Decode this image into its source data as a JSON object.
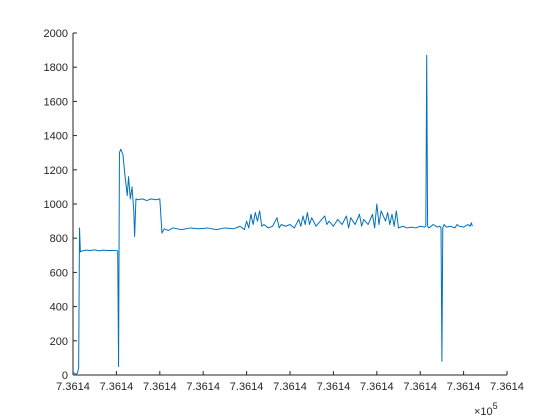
{
  "chart_data": {
    "type": "line",
    "title": "",
    "xlabel": "",
    "ylabel": "",
    "x_exponent_label": "×10",
    "x_exponent_power": "5",
    "ylim": [
      0,
      2000
    ],
    "xlim": [
      0,
      100
    ],
    "grid": false,
    "legend": "none",
    "y_ticks": [
      0,
      200,
      400,
      600,
      800,
      1000,
      1200,
      1400,
      1600,
      1800,
      2000
    ],
    "y_tick_labels": [
      "0",
      "200",
      "400",
      "600",
      "800",
      "1000",
      "1200",
      "1400",
      "1600",
      "1800",
      "2000"
    ],
    "x_ticks": [
      0,
      10,
      20,
      30,
      40,
      50,
      60,
      70,
      80,
      90,
      100
    ],
    "x_tick_labels": [
      "7.3614",
      "7.3614",
      "7.3614",
      "7.3614",
      "7.3614",
      "7.3614",
      "7.3614",
      "7.3614",
      "7.3614",
      "7.3614",
      "7.3614"
    ],
    "series": [
      {
        "color": "#0072bd",
        "points": [
          [
            0.0,
            15
          ],
          [
            0.6,
            5
          ],
          [
            1.0,
            10
          ],
          [
            1.3,
            40
          ],
          [
            1.5,
            860
          ],
          [
            1.7,
            720
          ],
          [
            2.0,
            725
          ],
          [
            3.0,
            730
          ],
          [
            4.0,
            728
          ],
          [
            5.0,
            732
          ],
          [
            6.0,
            726
          ],
          [
            7.0,
            730
          ],
          [
            8.0,
            728
          ],
          [
            9.0,
            729
          ],
          [
            10.0,
            727
          ],
          [
            10.3,
            725
          ],
          [
            10.5,
            50
          ],
          [
            10.7,
            1300
          ],
          [
            11.0,
            1320
          ],
          [
            11.5,
            1290
          ],
          [
            12.0,
            1160
          ],
          [
            12.5,
            1050
          ],
          [
            12.8,
            1160
          ],
          [
            13.2,
            1030
          ],
          [
            13.6,
            1100
          ],
          [
            14.0,
            960
          ],
          [
            14.2,
            810
          ],
          [
            14.5,
            1030
          ],
          [
            15.0,
            1025
          ],
          [
            16.0,
            1030
          ],
          [
            17.0,
            1020
          ],
          [
            18.0,
            1030
          ],
          [
            19.0,
            1025
          ],
          [
            20.0,
            1030
          ],
          [
            20.5,
            830
          ],
          [
            21.0,
            855
          ],
          [
            22.0,
            845
          ],
          [
            23.0,
            860
          ],
          [
            25.0,
            850
          ],
          [
            27.0,
            860
          ],
          [
            29.0,
            855
          ],
          [
            31.0,
            860
          ],
          [
            33.0,
            850
          ],
          [
            35.0,
            860
          ],
          [
            37.0,
            855
          ],
          [
            38.5,
            870
          ],
          [
            39.5,
            850
          ],
          [
            40.0,
            900
          ],
          [
            40.5,
            860
          ],
          [
            41.0,
            940
          ],
          [
            41.5,
            880
          ],
          [
            42.0,
            950
          ],
          [
            42.5,
            900
          ],
          [
            43.0,
            960
          ],
          [
            43.5,
            870
          ],
          [
            44.0,
            880
          ],
          [
            45.0,
            860
          ],
          [
            46.0,
            870
          ],
          [
            47.0,
            920
          ],
          [
            47.5,
            860
          ],
          [
            48.0,
            880
          ],
          [
            49.0,
            870
          ],
          [
            50.0,
            880
          ],
          [
            51.0,
            860
          ],
          [
            52.0,
            910
          ],
          [
            52.5,
            870
          ],
          [
            53.0,
            930
          ],
          [
            53.5,
            880
          ],
          [
            54.0,
            950
          ],
          [
            54.5,
            880
          ],
          [
            55.0,
            920
          ],
          [
            56.0,
            870
          ],
          [
            57.0,
            900
          ],
          [
            58.0,
            930
          ],
          [
            58.5,
            880
          ],
          [
            59.0,
            900
          ],
          [
            60.0,
            870
          ],
          [
            61.0,
            910
          ],
          [
            62.0,
            880
          ],
          [
            63.0,
            930
          ],
          [
            63.5,
            860
          ],
          [
            64.0,
            920
          ],
          [
            65.0,
            880
          ],
          [
            66.0,
            940
          ],
          [
            66.5,
            870
          ],
          [
            67.0,
            910
          ],
          [
            68.0,
            880
          ],
          [
            69.0,
            940
          ],
          [
            69.5,
            860
          ],
          [
            70.0,
            1000
          ],
          [
            70.5,
            880
          ],
          [
            71.0,
            960
          ],
          [
            72.0,
            900
          ],
          [
            72.5,
            950
          ],
          [
            73.0,
            880
          ],
          [
            73.5,
            940
          ],
          [
            74.0,
            870
          ],
          [
            74.5,
            960
          ],
          [
            75.0,
            860
          ],
          [
            76.0,
            870
          ],
          [
            77.0,
            860
          ],
          [
            78.0,
            865
          ],
          [
            79.0,
            860
          ],
          [
            80.0,
            870
          ],
          [
            81.0,
            865
          ],
          [
            81.3,
            870
          ],
          [
            81.5,
            1870
          ],
          [
            81.7,
            870
          ],
          [
            82.0,
            860
          ],
          [
            83.0,
            880
          ],
          [
            84.0,
            865
          ],
          [
            84.5,
            870
          ],
          [
            84.8,
            860
          ],
          [
            85.0,
            80
          ],
          [
            85.2,
            860
          ],
          [
            85.5,
            880
          ],
          [
            86.0,
            865
          ],
          [
            87.0,
            870
          ],
          [
            88.0,
            860
          ],
          [
            88.5,
            880
          ],
          [
            89.0,
            870
          ],
          [
            90.0,
            865
          ],
          [
            91.0,
            880
          ],
          [
            91.5,
            870
          ],
          [
            91.8,
            890
          ],
          [
            92.0,
            870
          ]
        ]
      }
    ]
  }
}
